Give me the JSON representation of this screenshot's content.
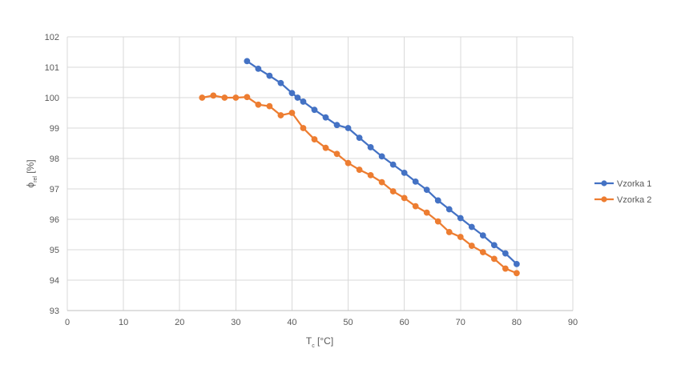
{
  "chart_data": {
    "type": "line",
    "title": "",
    "xlabel": {
      "main": "T",
      "sub": "c",
      "unit": " [°C]"
    },
    "ylabel": {
      "main": "ϕ",
      "sub": "rel",
      "unit": " [%]"
    },
    "xlim": [
      0,
      90
    ],
    "ylim": [
      93,
      102
    ],
    "x_ticks": [
      0,
      10,
      20,
      30,
      40,
      50,
      60,
      70,
      80,
      90
    ],
    "y_ticks": [
      93,
      94,
      95,
      96,
      97,
      98,
      99,
      100,
      101,
      102
    ],
    "grid": true,
    "legend_position": "right",
    "series": [
      {
        "name": "Vzorka 1",
        "color": "#4472C4",
        "x": [
          32,
          34,
          36,
          38,
          40,
          41,
          42,
          44,
          46,
          48,
          50,
          52,
          54,
          56,
          58,
          60,
          62,
          64,
          66,
          68,
          70,
          72,
          74,
          76,
          78,
          80
        ],
        "y": [
          101.2,
          100.95,
          100.72,
          100.48,
          100.15,
          100.0,
          99.87,
          99.6,
          99.35,
          99.1,
          99.0,
          98.68,
          98.37,
          98.07,
          97.8,
          97.53,
          97.24,
          96.97,
          96.62,
          96.33,
          96.04,
          95.75,
          95.47,
          95.15,
          94.88,
          94.53
        ]
      },
      {
        "name": "Vzorka 2",
        "color": "#ED7D31",
        "x": [
          24,
          26,
          28,
          30,
          32,
          34,
          36,
          38,
          40,
          42,
          44,
          46,
          48,
          50,
          52,
          54,
          56,
          58,
          60,
          62,
          64,
          66,
          68,
          70,
          72,
          74,
          76,
          78,
          80
        ],
        "y": [
          100.0,
          100.07,
          100.0,
          100.0,
          100.02,
          99.77,
          99.72,
          99.42,
          99.5,
          99.0,
          98.63,
          98.35,
          98.15,
          97.85,
          97.63,
          97.45,
          97.22,
          96.92,
          96.7,
          96.43,
          96.22,
          95.93,
          95.58,
          95.42,
          95.13,
          94.92,
          94.7,
          94.38,
          94.23
        ]
      }
    ]
  }
}
